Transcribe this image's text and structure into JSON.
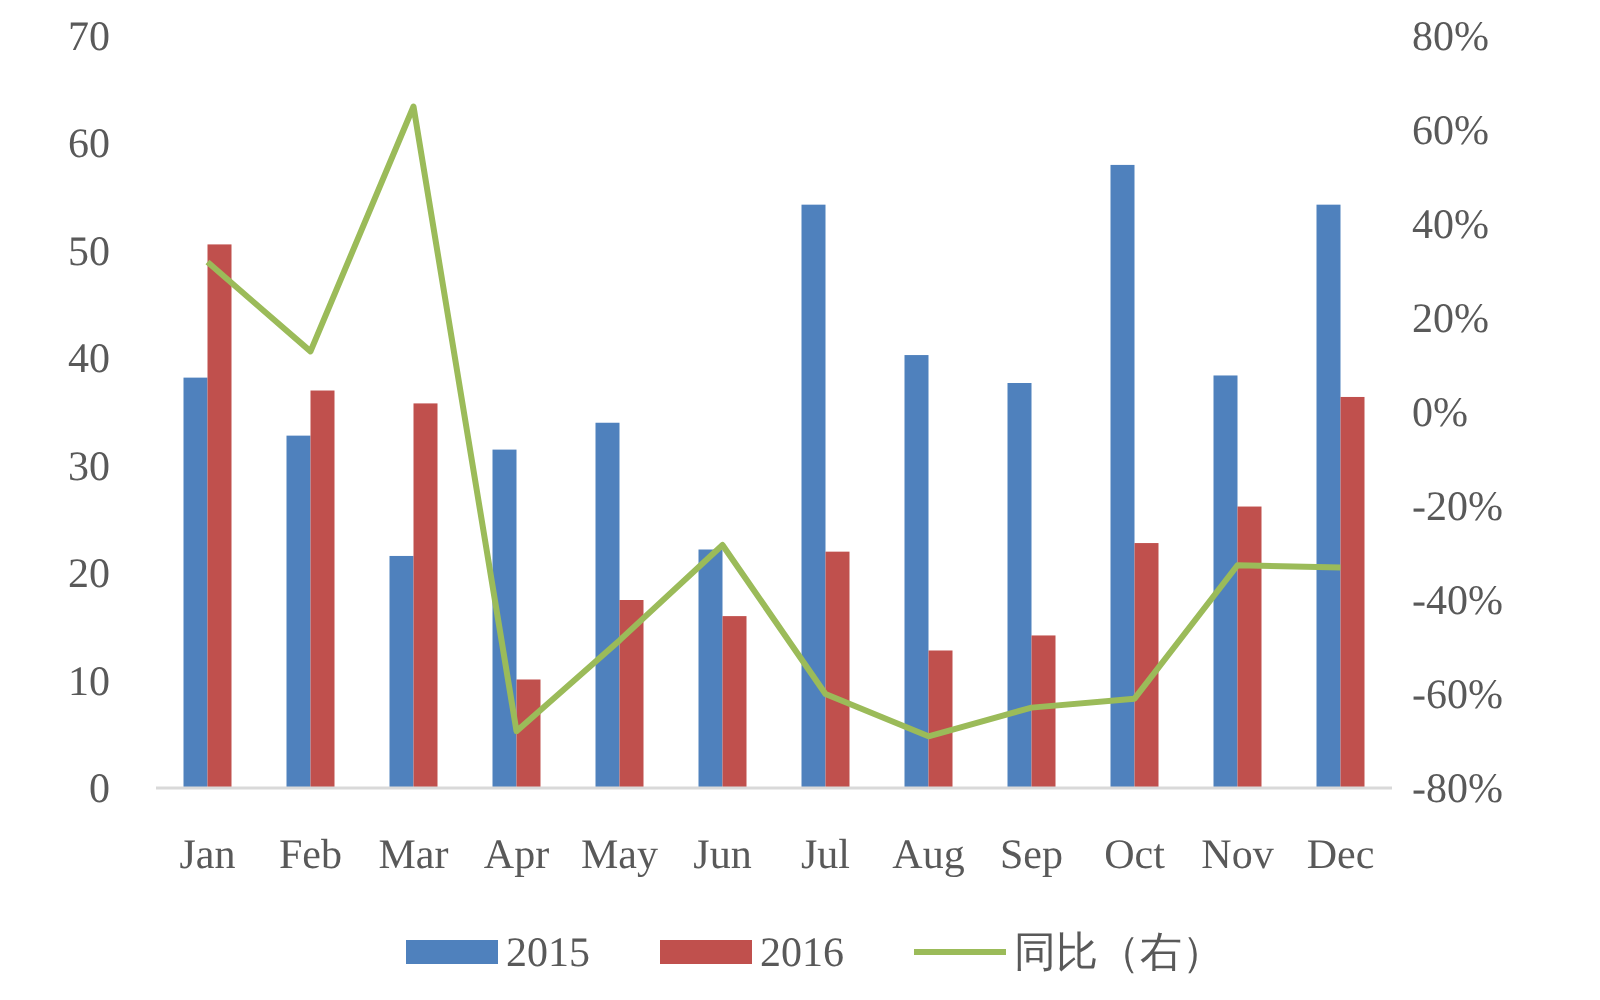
{
  "chart_data": {
    "type": "bar",
    "categories": [
      "Jan",
      "Feb",
      "Mar",
      "Apr",
      "May",
      "Jun",
      "Jul",
      "Aug",
      "Sep",
      "Oct",
      "Nov",
      "Dec"
    ],
    "series": [
      {
        "name": "2015",
        "color": "#4f81bd",
        "values": [
          38.2,
          32.8,
          21.6,
          31.5,
          34.0,
          22.2,
          54.3,
          40.3,
          37.7,
          58.0,
          38.4,
          54.3
        ]
      },
      {
        "name": "2016",
        "color": "#c0504d",
        "values": [
          50.6,
          37.0,
          35.8,
          10.1,
          17.5,
          16.0,
          22.0,
          12.8,
          14.2,
          22.8,
          26.2,
          36.4
        ]
      },
      {
        "name": "同比（右）",
        "type": "line",
        "axis": "y2",
        "color": "#9bbb59",
        "values": [
          31.9,
          12.9,
          65.0,
          -67.9,
          -48.6,
          -28.3,
          -60.0,
          -69.0,
          -62.9,
          -61.0,
          -32.6,
          -33.1
        ]
      }
    ],
    "ylim": [
      0,
      70
    ],
    "yticks": [
      0,
      10,
      20,
      30,
      40,
      50,
      60,
      70
    ],
    "y2lim": [
      -80,
      80
    ],
    "y2ticks": [
      {
        "value": -80,
        "label": "-80%"
      },
      {
        "value": -60,
        "label": "-60%"
      },
      {
        "value": -40,
        "label": "-40%"
      },
      {
        "value": -20,
        "label": "-20%"
      },
      {
        "value": 0,
        "label": "0%"
      },
      {
        "value": 20,
        "label": "20%"
      },
      {
        "value": 40,
        "label": "40%"
      },
      {
        "value": 60,
        "label": "60%"
      },
      {
        "value": 80,
        "label": "80%"
      }
    ],
    "legend": "bottom"
  }
}
